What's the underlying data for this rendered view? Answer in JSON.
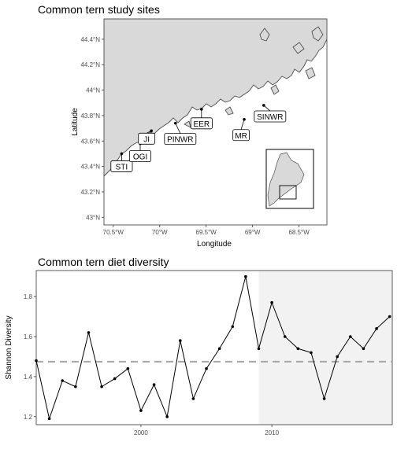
{
  "map": {
    "title": "Common tern study sites",
    "xlabel": "Longitude",
    "ylabel": "Latitude",
    "x_ticks": [
      "70.5°W",
      "70°W",
      "69.5°W",
      "69°W",
      "68.5°W"
    ],
    "y_ticks": [
      "44.4°N",
      "44.2°N",
      "44°N",
      "43.8°N",
      "43.6°N",
      "43.4°N",
      "43.2°N",
      "43°N"
    ],
    "sites": [
      {
        "label": "STI",
        "lon": -70.41,
        "lat": 43.5
      },
      {
        "label": "OGI",
        "lon": -70.21,
        "lat": 43.58
      },
      {
        "label": "JI",
        "lon": -70.09,
        "lat": 43.68
      },
      {
        "label": "PINWR",
        "lon": -69.83,
        "lat": 43.74
      },
      {
        "label": "EER",
        "lon": -69.55,
        "lat": 43.85
      },
      {
        "label": "MR",
        "lon": -69.09,
        "lat": 43.77
      },
      {
        "label": "SINWR",
        "lon": -68.88,
        "lat": 43.88
      }
    ],
    "colors": {
      "land": "#d9d9d9",
      "coast": "#4d4d4d",
      "water": "#ffffff"
    }
  },
  "chart_data": {
    "type": "line",
    "title": "Common tern diet diversity",
    "xlabel": "",
    "ylabel": "Shannon Diversity",
    "x_ticks": [
      2000,
      2010
    ],
    "y_ticks": [
      1.2,
      1.4,
      1.6,
      1.8
    ],
    "xlim": [
      1992,
      2019.2
    ],
    "ylim": [
      1.16,
      1.93
    ],
    "series": [
      {
        "x": [
          1992,
          1993,
          1994,
          1995,
          1996,
          1997,
          1998,
          1999,
          2000,
          2001,
          2002,
          2003,
          2004,
          2005,
          2006,
          2007,
          2008,
          2009,
          2010,
          2011,
          2012,
          2013,
          2014,
          2015,
          2016,
          2017,
          2018,
          2019
        ],
        "values": [
          1.48,
          1.19,
          1.38,
          1.35,
          1.62,
          1.35,
          1.39,
          1.44,
          1.23,
          1.36,
          1.2,
          1.58,
          1.29,
          1.44,
          1.54,
          1.65,
          1.9,
          1.54,
          1.77,
          1.6,
          1.54,
          1.52,
          1.29,
          1.5,
          1.6,
          1.54,
          1.64,
          1.7
        ]
      }
    ],
    "mean_line": 1.475,
    "shaded_period": [
      2009,
      2019.2
    ],
    "colors": {
      "line": "#000000",
      "mean": "#a6a6a6",
      "shade": "#f2f2f2",
      "grid": "#ebebeb"
    }
  }
}
